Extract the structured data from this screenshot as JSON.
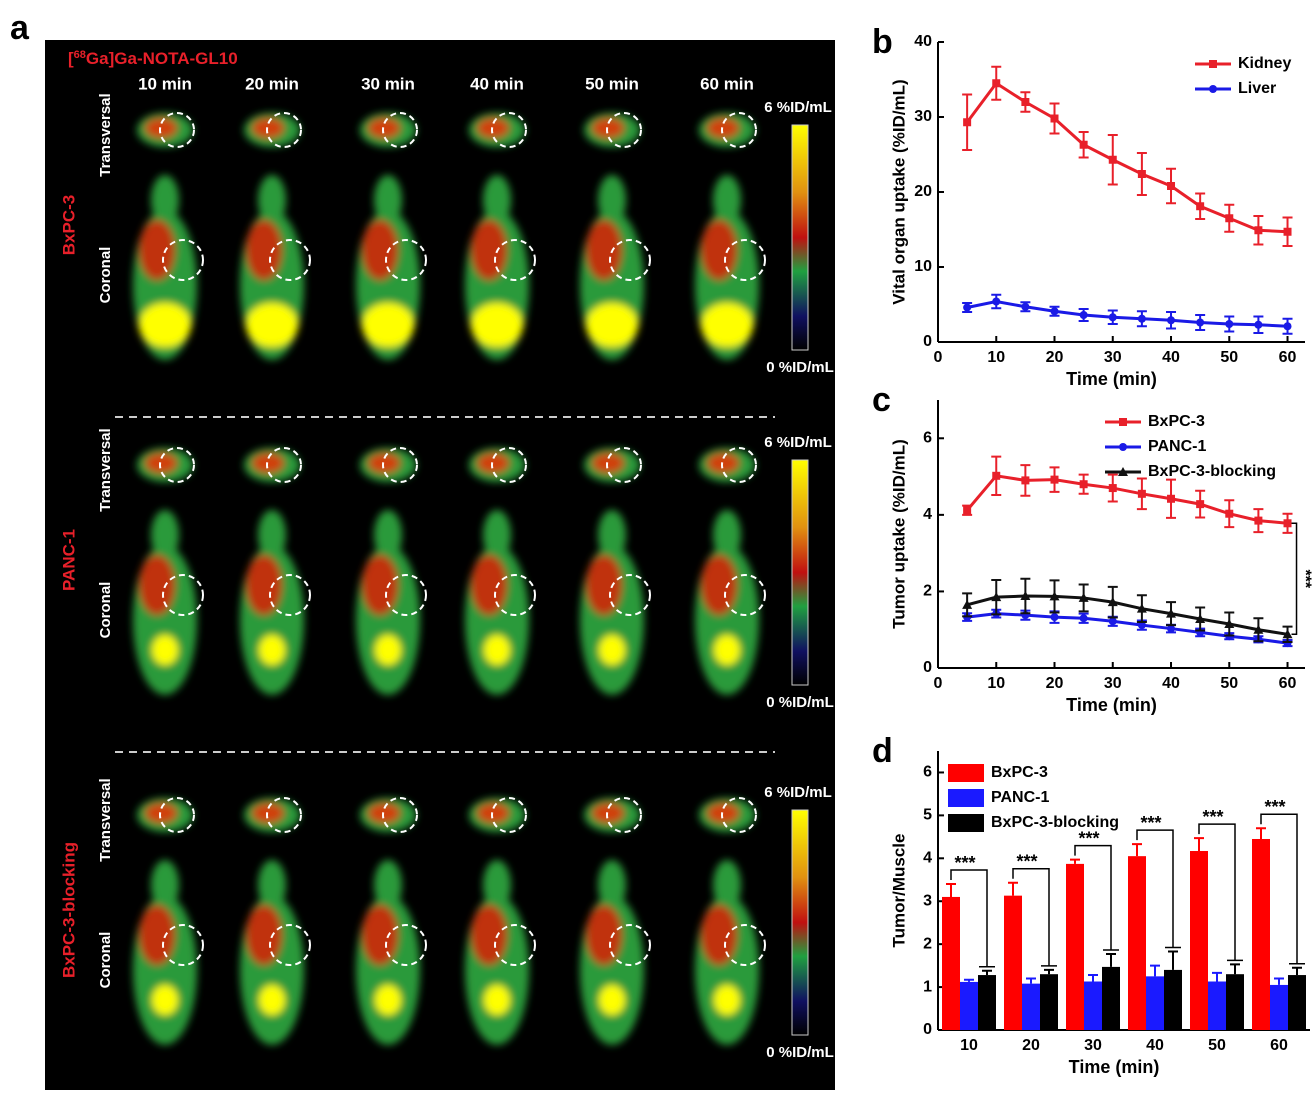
{
  "panel_a": {
    "label": "a",
    "tracer": {
      "prefix": "[",
      "mass": "68",
      "suffix": "Ga]Ga-NOTA-GL10"
    },
    "times": [
      "10 min",
      "20 min",
      "30 min",
      "40 min",
      "50 min",
      "60 min"
    ],
    "groups": [
      {
        "name": "BxPC-3",
        "views": [
          "Transversal",
          "Coronal"
        ],
        "scale_max": "6 %ID/mL",
        "scale_min": "0 %ID/mL"
      },
      {
        "name": "PANC-1",
        "views": [
          "Transversal",
          "Coronal"
        ],
        "scale_max": "6 %ID/mL",
        "scale_min": "0 %ID/mL"
      },
      {
        "name": "BxPC-3-blocking",
        "views": [
          "Transversal",
          "Coronal"
        ],
        "scale_max": "6 %ID/mL",
        "scale_min": "0 %ID/mL"
      }
    ]
  },
  "chart_data": [
    {
      "panel": "b",
      "type": "line",
      "x": [
        5,
        10,
        15,
        20,
        25,
        30,
        35,
        40,
        45,
        50,
        55,
        60
      ],
      "xlim": [
        0,
        63
      ],
      "xticks": [
        0,
        10,
        20,
        30,
        40,
        50,
        60
      ],
      "ylim": [
        0,
        40
      ],
      "yticks": [
        0,
        10,
        20,
        30,
        40
      ],
      "xlabel": "Time (min)",
      "ylabel": "Vital organ uptake (%ID/mL)",
      "legend": "upper right",
      "series": [
        {
          "name": "Kidney",
          "color": "#e8202a",
          "marker": "square",
          "values": [
            29.3,
            34.5,
            32.0,
            29.8,
            26.3,
            24.3,
            22.4,
            20.8,
            18.1,
            16.5,
            14.9,
            14.7
          ],
          "errors": [
            3.7,
            2.2,
            1.3,
            2.0,
            1.7,
            3.3,
            2.8,
            2.3,
            1.7,
            1.8,
            1.9,
            1.9
          ]
        },
        {
          "name": "Liver",
          "color": "#1a1ae6",
          "marker": "circle",
          "values": [
            4.6,
            5.4,
            4.7,
            4.1,
            3.6,
            3.3,
            3.1,
            2.9,
            2.6,
            2.4,
            2.3,
            2.1
          ],
          "errors": [
            0.6,
            0.9,
            0.6,
            0.6,
            0.8,
            0.9,
            1.0,
            1.1,
            1.0,
            1.0,
            1.1,
            1.0
          ]
        }
      ]
    },
    {
      "panel": "c",
      "type": "line",
      "x": [
        5,
        10,
        15,
        20,
        25,
        30,
        35,
        40,
        45,
        50,
        55,
        60
      ],
      "xlim": [
        0,
        63
      ],
      "xticks": [
        0,
        10,
        20,
        30,
        40,
        50,
        60
      ],
      "ylim": [
        0,
        7
      ],
      "yticks": [
        0,
        2,
        4,
        6
      ],
      "xlabel": "Time (min)",
      "ylabel": "Tumor uptake (%ID/mL)",
      "legend": "upper right",
      "annotation": "***",
      "series": [
        {
          "name": "BxPC-3",
          "color": "#e8202a",
          "marker": "square",
          "values": [
            4.12,
            5.02,
            4.9,
            4.92,
            4.8,
            4.7,
            4.55,
            4.42,
            4.28,
            4.03,
            3.85,
            3.78
          ],
          "errors": [
            0.12,
            0.5,
            0.4,
            0.32,
            0.25,
            0.35,
            0.4,
            0.5,
            0.35,
            0.35,
            0.3,
            0.25
          ]
        },
        {
          "name": "PANC-1",
          "color": "#1a1ae6",
          "marker": "circle",
          "values": [
            1.33,
            1.42,
            1.38,
            1.33,
            1.3,
            1.22,
            1.12,
            1.03,
            0.93,
            0.83,
            0.75,
            0.65
          ],
          "errors": [
            0.1,
            0.1,
            0.12,
            0.15,
            0.12,
            0.12,
            0.12,
            0.1,
            0.1,
            0.08,
            0.08,
            0.08
          ]
        },
        {
          "name": "BxPC-3-blocking",
          "color": "#111111",
          "marker": "triangle",
          "values": [
            1.65,
            1.85,
            1.88,
            1.87,
            1.83,
            1.72,
            1.55,
            1.42,
            1.28,
            1.15,
            1.0,
            0.88
          ],
          "errors": [
            0.3,
            0.45,
            0.45,
            0.42,
            0.35,
            0.4,
            0.35,
            0.3,
            0.3,
            0.3,
            0.3,
            0.2
          ]
        }
      ]
    },
    {
      "panel": "d",
      "type": "bar",
      "categories": [
        10,
        20,
        30,
        40,
        50,
        60
      ],
      "ylim": [
        0,
        6.5
      ],
      "yticks": [
        0,
        1,
        2,
        3,
        4,
        5,
        6
      ],
      "xlabel": "Time (min)",
      "ylabel": "Tumor/Muscle",
      "legend": "upper left",
      "annotations": [
        "***",
        "***",
        "***",
        "***",
        "***",
        "***"
      ],
      "series": [
        {
          "name": "BxPC-3",
          "color": "#ff0000",
          "values": [
            3.1,
            3.13,
            3.87,
            4.05,
            4.17,
            4.45
          ],
          "errors": [
            0.3,
            0.3,
            0.1,
            0.28,
            0.3,
            0.25
          ]
        },
        {
          "name": "PANC-1",
          "color": "#1a1aff",
          "values": [
            1.12,
            1.08,
            1.13,
            1.25,
            1.13,
            1.05
          ],
          "errors": [
            0.05,
            0.12,
            0.15,
            0.25,
            0.2,
            0.15
          ]
        },
        {
          "name": "BxPC-3-blocking",
          "color": "#000000",
          "values": [
            1.28,
            1.3,
            1.47,
            1.4,
            1.3,
            1.28
          ],
          "errors": [
            0.1,
            0.1,
            0.3,
            0.43,
            0.23,
            0.17
          ]
        }
      ]
    }
  ]
}
